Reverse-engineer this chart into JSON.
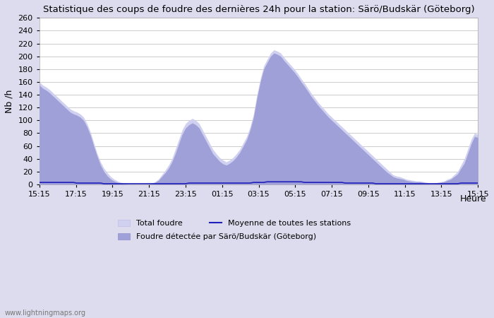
{
  "title": "Statistique des coups de foudre des dernières 24h pour la station: Särö/Budskär (Göteborg)",
  "ylabel": "Nb /h",
  "xlabel": "Heure",
  "ylim": [
    0,
    260
  ],
  "yticks": [
    0,
    20,
    40,
    60,
    80,
    100,
    120,
    140,
    160,
    180,
    200,
    220,
    240,
    260
  ],
  "xtick_labels": [
    "15:15",
    "17:15",
    "19:15",
    "21:15",
    "23:15",
    "01:15",
    "03:15",
    "05:15",
    "07:15",
    "09:15",
    "11:15",
    "13:15",
    "15:15"
  ],
  "background_color": "#dcdcee",
  "plot_bg_color": "#ffffff",
  "total_foudre_color": "#d0d0f0",
  "total_foudre_edge": "#c0c0e8",
  "detected_color": "#a0a0d8",
  "detected_edge": "#9090cc",
  "mean_line_color": "#2020bb",
  "watermark": "www.lightningmaps.org",
  "legend_items": [
    "Total foudre",
    "Moyenne de toutes les stations",
    "Foudre détectée par Särö/Budskär (Göteborg)"
  ],
  "total_foudre_values": [
    160,
    155,
    152,
    148,
    143,
    138,
    133,
    128,
    123,
    118,
    115,
    113,
    110,
    105,
    95,
    82,
    65,
    48,
    35,
    25,
    18,
    12,
    8,
    5,
    3,
    2,
    1,
    0,
    0,
    0,
    0,
    0,
    0,
    2,
    4,
    8,
    15,
    22,
    30,
    40,
    55,
    70,
    85,
    95,
    100,
    103,
    100,
    95,
    85,
    75,
    65,
    55,
    48,
    42,
    38,
    35,
    38,
    42,
    48,
    55,
    65,
    75,
    90,
    110,
    140,
    165,
    185,
    195,
    205,
    210,
    208,
    205,
    198,
    192,
    186,
    180,
    173,
    165,
    158,
    150,
    142,
    135,
    128,
    122,
    116,
    110,
    105,
    100,
    95,
    90,
    85,
    80,
    75,
    70,
    65,
    60,
    55,
    50,
    45,
    40,
    35,
    30,
    25,
    20,
    15,
    13,
    12,
    10,
    8,
    7,
    6,
    5,
    5,
    4,
    3,
    2,
    2,
    3,
    4,
    5,
    8,
    10,
    15,
    20,
    30,
    40,
    55,
    70,
    80,
    78
  ],
  "detected_foudre_values": [
    155,
    150,
    147,
    143,
    138,
    133,
    128,
    123,
    118,
    113,
    110,
    108,
    105,
    100,
    90,
    77,
    60,
    44,
    30,
    20,
    13,
    8,
    5,
    3,
    2,
    1,
    0,
    0,
    0,
    0,
    0,
    0,
    0,
    1,
    3,
    6,
    12,
    18,
    25,
    35,
    48,
    63,
    78,
    88,
    93,
    96,
    93,
    88,
    78,
    68,
    58,
    48,
    42,
    36,
    32,
    30,
    33,
    37,
    43,
    50,
    60,
    70,
    85,
    105,
    135,
    160,
    180,
    190,
    200,
    205,
    203,
    200,
    193,
    187,
    181,
    175,
    168,
    160,
    153,
    145,
    137,
    130,
    123,
    117,
    111,
    105,
    100,
    95,
    90,
    85,
    80,
    75,
    70,
    65,
    60,
    55,
    50,
    45,
    40,
    35,
    30,
    25,
    20,
    16,
    12,
    10,
    9,
    8,
    6,
    5,
    4,
    4,
    4,
    3,
    2,
    1,
    1,
    2,
    3,
    4,
    6,
    8,
    12,
    16,
    25,
    33,
    48,
    63,
    75,
    73
  ],
  "mean_values": [
    3,
    3,
    3,
    3,
    3,
    3,
    3,
    3,
    3,
    3,
    3,
    2,
    2,
    2,
    2,
    2,
    2,
    2,
    2,
    1,
    1,
    1,
    1,
    1,
    1,
    1,
    1,
    1,
    1,
    1,
    1,
    1,
    1,
    1,
    1,
    1,
    1,
    1,
    1,
    1,
    1,
    1,
    1,
    1,
    2,
    2,
    2,
    2,
    2,
    2,
    2,
    2,
    2,
    2,
    2,
    2,
    2,
    2,
    2,
    2,
    2,
    2,
    2,
    3,
    3,
    3,
    3,
    4,
    4,
    4,
    4,
    4,
    4,
    4,
    4,
    4,
    4,
    4,
    3,
    3,
    3,
    3,
    3,
    3,
    3,
    3,
    3,
    3,
    3,
    3,
    2,
    2,
    2,
    2,
    2,
    2,
    2,
    2,
    2,
    1,
    1,
    1,
    1,
    1,
    1,
    1,
    1,
    1,
    1,
    1,
    1,
    1,
    1,
    1,
    1,
    1,
    1,
    1,
    1,
    1,
    1,
    1,
    1,
    1,
    2,
    2,
    2,
    2,
    2,
    2
  ]
}
